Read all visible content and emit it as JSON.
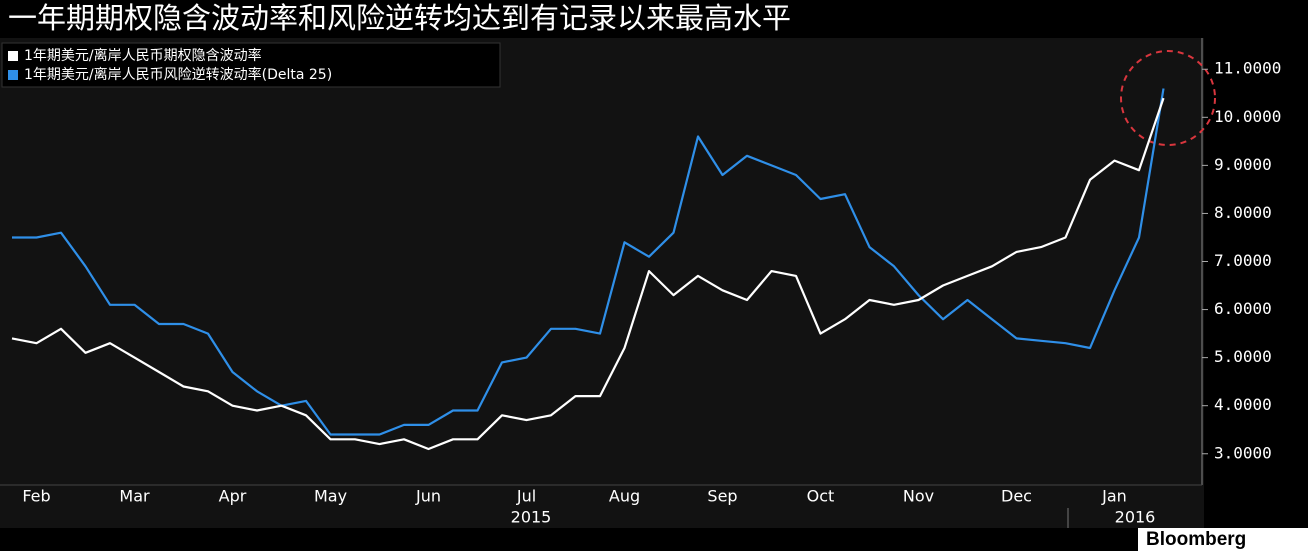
{
  "chart_data": {
    "type": "line",
    "title": "一年期期权隐含波动率和风险逆转均达到有记录以来最高水平",
    "categories": [
      null,
      "Feb",
      null,
      null,
      null,
      "Mar",
      null,
      null,
      null,
      "Apr",
      null,
      null,
      null,
      "May",
      null,
      null,
      null,
      "Jun",
      null,
      null,
      null,
      "Jul",
      null,
      null,
      null,
      "Aug",
      null,
      null,
      null,
      "Sep",
      null,
      null,
      null,
      "Oct",
      null,
      null,
      null,
      "Nov",
      null,
      null,
      null,
      "Dec",
      null,
      null,
      null,
      "Jan",
      null,
      null
    ],
    "x_group_labels": [
      "2015",
      "2016"
    ],
    "series": [
      {
        "name": "1年期美元/离岸人民币期权隐含波动率",
        "color": "#ffffff",
        "values": [
          5.4,
          5.3,
          5.6,
          5.1,
          5.3,
          5.0,
          4.7,
          4.4,
          4.3,
          4.0,
          3.9,
          4.0,
          3.8,
          3.3,
          3.3,
          3.2,
          3.3,
          3.1,
          3.3,
          3.3,
          3.8,
          3.7,
          3.8,
          4.2,
          4.2,
          5.2,
          6.8,
          6.3,
          6.7,
          6.4,
          6.2,
          6.8,
          6.7,
          5.5,
          5.8,
          6.2,
          6.1,
          6.2,
          6.5,
          6.7,
          6.9,
          7.2,
          7.3,
          7.5,
          8.7,
          9.1,
          8.9,
          10.4
        ]
      },
      {
        "name": "1年期美元/离岸人民币风险逆转波动率(Delta 25)",
        "color": "#2f8fe8",
        "values": [
          7.5,
          7.5,
          7.6,
          6.9,
          6.1,
          6.1,
          5.7,
          5.7,
          5.5,
          4.7,
          4.3,
          4.0,
          4.1,
          3.4,
          3.4,
          3.4,
          3.6,
          3.6,
          3.9,
          3.9,
          4.9,
          5.0,
          5.6,
          5.6,
          5.5,
          7.4,
          7.1,
          7.6,
          9.6,
          8.8,
          9.2,
          9.0,
          8.8,
          8.3,
          8.4,
          7.3,
          6.9,
          6.3,
          5.8,
          6.2,
          5.8,
          5.4,
          5.35,
          5.3,
          5.2,
          6.4,
          7.5,
          10.6
        ]
      }
    ],
    "ylim": [
      2.35,
      11.65
    ],
    "yticks": [
      {
        "value": 3,
        "label": "3.0000"
      },
      {
        "value": 4,
        "label": "4.0000"
      },
      {
        "value": 5,
        "label": "5.0000"
      },
      {
        "value": 6,
        "label": "6.0000"
      },
      {
        "value": 7,
        "label": "7.0000"
      },
      {
        "value": 8,
        "label": "8.0000"
      },
      {
        "value": 9,
        "label": "9.0000"
      },
      {
        "value": 10,
        "label": "10.0000"
      },
      {
        "value": 11,
        "label": "11.0000"
      }
    ],
    "grid": false,
    "source": "Bloomberg"
  }
}
